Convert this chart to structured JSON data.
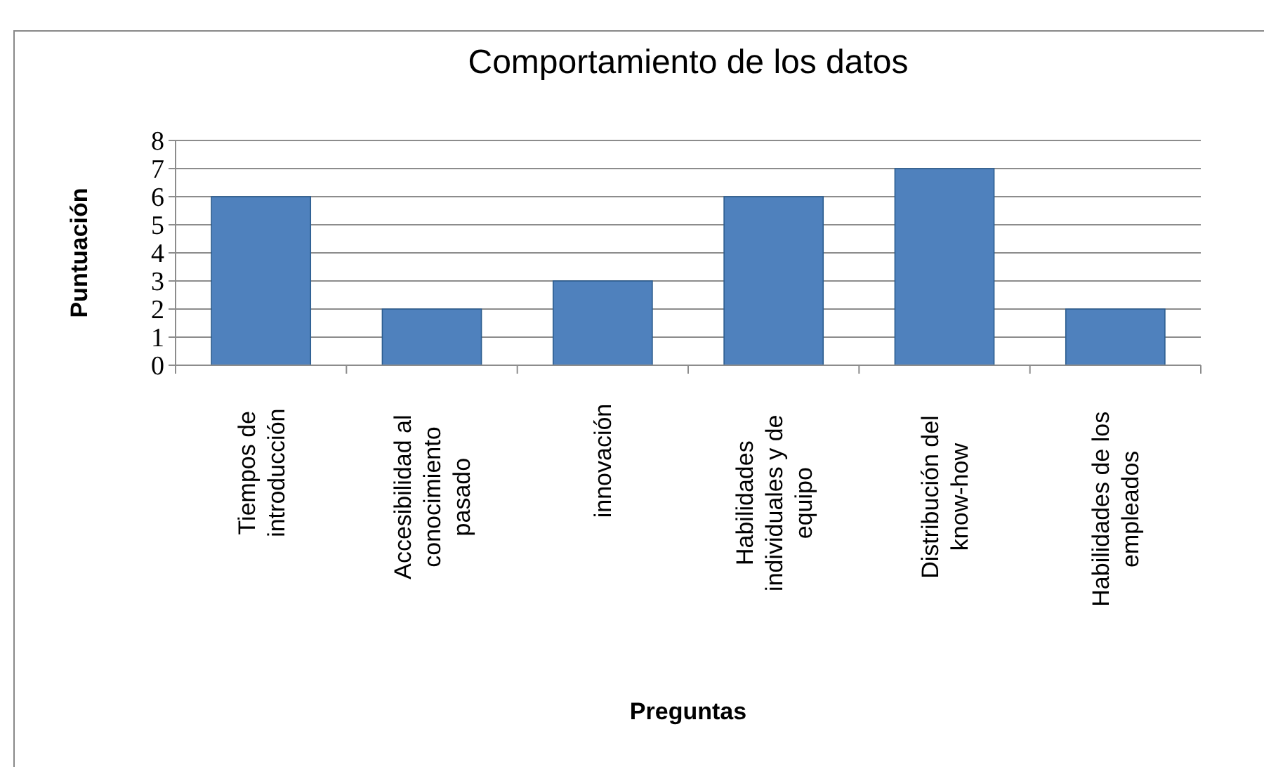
{
  "chart_data": {
    "type": "bar",
    "title": "Comportamiento de los datos",
    "xlabel": "Preguntas",
    "ylabel": "Puntuación",
    "categories": [
      "Tiempos de introducción",
      "Accesibilidad al conocimiento pasado",
      "innovación",
      "Habilidades individuales y de equipo",
      "Distribución del know-how",
      "Habilidades de los empleados"
    ],
    "values": [
      6,
      2,
      3,
      6,
      7,
      2
    ],
    "color": "#4f81bd",
    "ylim": [
      0,
      8
    ],
    "yticks": [
      0,
      1,
      2,
      3,
      4,
      5,
      6,
      7,
      8
    ],
    "grid": "y"
  }
}
